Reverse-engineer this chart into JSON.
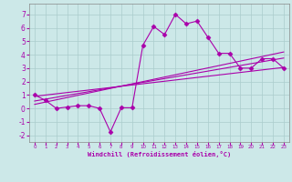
{
  "background_color": "#cce8e8",
  "grid_color": "#aacccc",
  "line_color": "#aa00aa",
  "xlabel": "Windchill (Refroidissement éolien,°C)",
  "xlim": [
    -0.5,
    23.5
  ],
  "ylim": [
    -2.5,
    7.8
  ],
  "yticks": [
    -2,
    -1,
    0,
    1,
    2,
    3,
    4,
    5,
    6,
    7
  ],
  "xticks": [
    0,
    1,
    2,
    3,
    4,
    5,
    6,
    7,
    8,
    9,
    10,
    11,
    12,
    13,
    14,
    15,
    16,
    17,
    18,
    19,
    20,
    21,
    22,
    23
  ],
  "main_x": [
    0,
    1,
    2,
    3,
    4,
    5,
    6,
    7,
    8,
    9,
    10,
    11,
    12,
    13,
    14,
    15,
    16,
    17,
    18,
    19,
    20,
    21,
    22,
    23
  ],
  "main_y": [
    1.0,
    0.6,
    0.0,
    0.1,
    0.2,
    0.2,
    0.0,
    -1.75,
    0.05,
    0.05,
    4.7,
    6.1,
    5.5,
    7.0,
    6.3,
    6.5,
    5.3,
    4.1,
    4.1,
    3.0,
    3.0,
    3.7,
    3.7,
    3.0
  ],
  "line2_x": [
    0,
    23
  ],
  "line2_y": [
    0.9,
    3.05
  ],
  "line3_x": [
    0,
    23
  ],
  "line3_y": [
    0.55,
    3.75
  ],
  "line4_x": [
    0,
    23
  ],
  "line4_y": [
    0.3,
    4.2
  ]
}
